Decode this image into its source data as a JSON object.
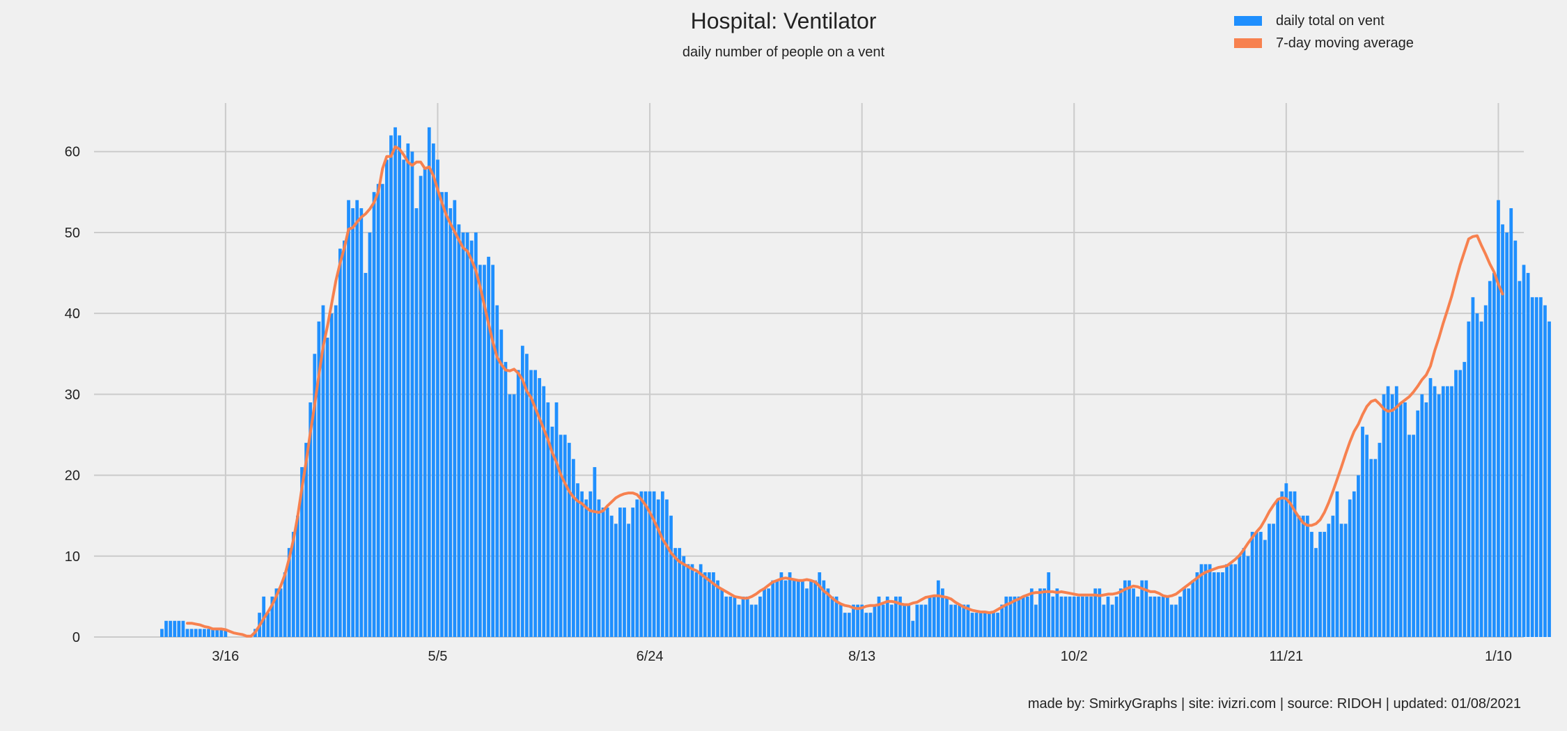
{
  "chart_data": {
    "type": "bar",
    "title": "Hospital: Ventilator",
    "subtitle": "daily number of people on a vent",
    "xlabel": "",
    "ylabel": "",
    "ylim": [
      0,
      66
    ],
    "xlim": [
      "2020-02-14",
      "2021-01-16"
    ],
    "yticks": [
      0,
      10,
      20,
      30,
      40,
      50,
      60
    ],
    "xticks": [
      {
        "date": "2020-03-16",
        "label": "3/16"
      },
      {
        "date": "2020-05-05",
        "label": "5/5"
      },
      {
        "date": "2020-06-24",
        "label": "6/24"
      },
      {
        "date": "2020-08-13",
        "label": "8/13"
      },
      {
        "date": "2020-10-02",
        "label": "10/2"
      },
      {
        "date": "2020-11-21",
        "label": "11/21"
      },
      {
        "date": "2021-01-10",
        "label": "1/10"
      }
    ],
    "grid": true,
    "legend_position": "top-right",
    "start_date": "2020-03-01",
    "series": [
      {
        "name": "daily total on vent",
        "type": "bar",
        "color": "#1f8ffe",
        "values": [
          1,
          2,
          2,
          2,
          2,
          2,
          1,
          1,
          1,
          1,
          1,
          1,
          1,
          1,
          1,
          1,
          0,
          0,
          0,
          0,
          0,
          0,
          1,
          3,
          5,
          3,
          5,
          6,
          6,
          8,
          11,
          13,
          15,
          21,
          24,
          29,
          35,
          39,
          41,
          37,
          40,
          41,
          48,
          49,
          54,
          53,
          54,
          53,
          45,
          50,
          55,
          56,
          56,
          59,
          62,
          63,
          62,
          59,
          61,
          60,
          53,
          57,
          58,
          63,
          61,
          59,
          55,
          55,
          53,
          54,
          51,
          50,
          50,
          49,
          50,
          46,
          46,
          47,
          46,
          41,
          38,
          34,
          30,
          30,
          33,
          36,
          35,
          33,
          33,
          32,
          31,
          29,
          26,
          29,
          25,
          25,
          24,
          22,
          19,
          18,
          17,
          18,
          21,
          17,
          16,
          16,
          15,
          14,
          16,
          16,
          14,
          16,
          17,
          18,
          18,
          18,
          18,
          17,
          18,
          17,
          15,
          11,
          11,
          10,
          9,
          9,
          8,
          9,
          8,
          8,
          8,
          7,
          6,
          5,
          5,
          5,
          4,
          5,
          5,
          4,
          4,
          5,
          6,
          6,
          7,
          7,
          8,
          7,
          8,
          7,
          7,
          7,
          6,
          7,
          7,
          8,
          7,
          6,
          5,
          5,
          4,
          3,
          3,
          4,
          4,
          4,
          3,
          3,
          4,
          5,
          4,
          5,
          4,
          5,
          5,
          4,
          4,
          2,
          4,
          4,
          4,
          5,
          5,
          7,
          6,
          5,
          4,
          4,
          4,
          4,
          4,
          3,
          3,
          3,
          3,
          3,
          3,
          3,
          4,
          5,
          5,
          5,
          5,
          5,
          5,
          6,
          4,
          6,
          6,
          8,
          5,
          6,
          5,
          5,
          5,
          5,
          5,
          5,
          5,
          5,
          6,
          6,
          4,
          5,
          4,
          5,
          6,
          7,
          7,
          6,
          5,
          7,
          7,
          5,
          5,
          5,
          5,
          5,
          4,
          4,
          5,
          6,
          6,
          7,
          8,
          9,
          9,
          9,
          8,
          8,
          8,
          9,
          9,
          9,
          10,
          11,
          10,
          13,
          13,
          13,
          12,
          14,
          14,
          17,
          18,
          19,
          18,
          18,
          15,
          15,
          15,
          13,
          11,
          13,
          13,
          14,
          15,
          18,
          14,
          14,
          17,
          18,
          20,
          26,
          25,
          22,
          22,
          24,
          30,
          31,
          30,
          31,
          29,
          29,
          25,
          25,
          28,
          30,
          29,
          32,
          31,
          30,
          31,
          31,
          31,
          33,
          33,
          34,
          39,
          42,
          40,
          39,
          41,
          44,
          45,
          54,
          51,
          50,
          53,
          49,
          44,
          46,
          45,
          42,
          42,
          42,
          41,
          39
        ]
      },
      {
        "name": "7-day moving average",
        "type": "line",
        "color": "#f7814f",
        "start_index": 6,
        "values": [
          1.7,
          1.7,
          1.6,
          1.5,
          1.3,
          1.2,
          1.0,
          1.0,
          1.0,
          0.9,
          0.7,
          0.5,
          0.4,
          0.3,
          0.1,
          0.1,
          0.6,
          1.4,
          2.3,
          3.1,
          4.0,
          5.1,
          6.3,
          7.7,
          9.7,
          12.0,
          14.9,
          18.4,
          21.7,
          25.3,
          28.7,
          32.4,
          35.9,
          38.4,
          41.2,
          44.0,
          46.2,
          48.1,
          50.4,
          50.6,
          51.3,
          51.9,
          52.3,
          52.9,
          53.7,
          55.0,
          57.9,
          59.4,
          59.4,
          60.6,
          60.3,
          59.6,
          58.7,
          58.3,
          58.7,
          58.7,
          57.9,
          58.1,
          57.0,
          55.3,
          53.7,
          52.2,
          51.1,
          50.1,
          49.1,
          48.1,
          47.7,
          46.6,
          45.3,
          43.3,
          41.0,
          38.7,
          36.5,
          34.6,
          33.7,
          33.0,
          32.9,
          33.1,
          32.6,
          31.8,
          30.4,
          29.6,
          28.3,
          27.0,
          25.7,
          24.4,
          22.8,
          21.6,
          20.1,
          19.0,
          18.0,
          17.3,
          16.8,
          16.5,
          16.0,
          15.6,
          15.5,
          15.4,
          15.6,
          16.2,
          16.7,
          17.2,
          17.5,
          17.7,
          17.8,
          17.8,
          17.6,
          17.0,
          16.3,
          15.4,
          14.4,
          13.3,
          12.1,
          11.3,
          10.4,
          9.8,
          9.3,
          9.0,
          8.7,
          8.4,
          8.2,
          7.8,
          7.4,
          7.0,
          6.6,
          6.2,
          5.9,
          5.6,
          5.3,
          5.0,
          4.9,
          4.8,
          4.8,
          5.0,
          5.3,
          5.7,
          6.0,
          6.4,
          6.8,
          7.0,
          7.2,
          7.3,
          7.2,
          7.1,
          7.0,
          7.0,
          7.1,
          7.0,
          6.8,
          6.3,
          5.7,
          5.3,
          4.8,
          4.4,
          4.1,
          3.9,
          3.8,
          3.6,
          3.5,
          3.6,
          3.8,
          3.9,
          3.9,
          4.0,
          4.2,
          4.4,
          4.4,
          4.3,
          4.1,
          4.0,
          4.0,
          4.2,
          4.3,
          4.6,
          4.9,
          5.0,
          5.1,
          5.1,
          5.0,
          4.9,
          4.7,
          4.3,
          4.0,
          3.7,
          3.5,
          3.3,
          3.2,
          3.1,
          3.1,
          3.0,
          3.1,
          3.4,
          3.7,
          4.0,
          4.2,
          4.5,
          4.7,
          5.0,
          5.2,
          5.4,
          5.5,
          5.5,
          5.6,
          5.6,
          5.6,
          5.5,
          5.6,
          5.5,
          5.4,
          5.3,
          5.2,
          5.2,
          5.2,
          5.2,
          5.2,
          5.1,
          5.2,
          5.3,
          5.3,
          5.4,
          5.6,
          5.9,
          6.1,
          6.3,
          6.2,
          6.0,
          5.8,
          5.6,
          5.6,
          5.4,
          5.1,
          5.0,
          5.1,
          5.3,
          5.7,
          6.1,
          6.5,
          6.9,
          7.3,
          7.7,
          8.0,
          8.2,
          8.4,
          8.6,
          8.7,
          8.8,
          9.2,
          9.6,
          10.1,
          10.8,
          11.6,
          12.3,
          13.0,
          13.6,
          14.5,
          15.5,
          16.3,
          17.0,
          17.2,
          17.1,
          16.5,
          15.6,
          14.8,
          14.1,
          13.8,
          13.8,
          14.0,
          14.5,
          15.4,
          16.6,
          18.0,
          19.5,
          21.0,
          22.6,
          24.1,
          25.4,
          26.3,
          27.5,
          28.5,
          29.1,
          29.3,
          28.8,
          28.2,
          27.9,
          28.0,
          28.4,
          28.9,
          29.3,
          29.7,
          30.3,
          31.0,
          31.8,
          32.4,
          33.5,
          35.4,
          37.0,
          38.8,
          40.4,
          42.1,
          44.1,
          46.0,
          47.6,
          49.2,
          49.5,
          49.6,
          48.4,
          47.3,
          46.1,
          45.1,
          43.6,
          42.4
        ]
      }
    ]
  },
  "footer": "made by: SmirkyGraphs  |  site: ivizri.com  |  source: RIDOH  |  updated: 01/08/2021"
}
